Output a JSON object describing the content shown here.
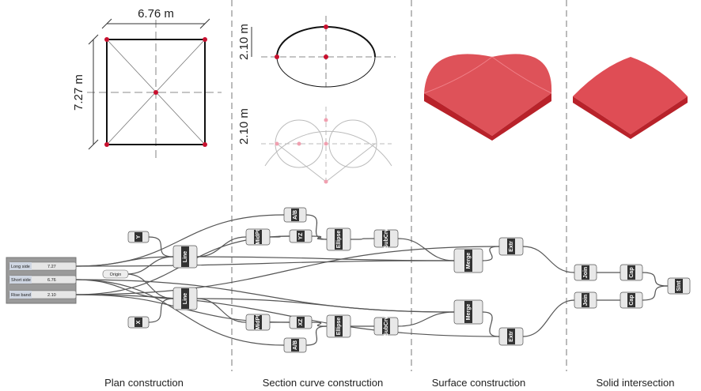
{
  "drawing_labels": {
    "plan_width": "6.76 m",
    "plan_depth": "7.27 m",
    "section_rise_top": "2.10 m",
    "section_rise_bottom": "2.10 m"
  },
  "sliders": [
    {
      "name": "Long side",
      "value": "7.27"
    },
    {
      "name": "Short side",
      "value": "6.76"
    },
    {
      "name": "Rise band",
      "value": "2.10"
    }
  ],
  "origin": "Origin",
  "components": [
    "Y",
    "X",
    "Line",
    "Line",
    "MidPt",
    "MidPt",
    "A/B",
    "A/B",
    "YZ",
    "XZ",
    "Ellipse",
    "Ellipse",
    "SubCrv",
    "SubCrv",
    "Merge",
    "Merge",
    "Extr",
    "Extr",
    "Join",
    "Join",
    "Cap",
    "Cap",
    "SInt"
  ],
  "section_titles": [
    "Plan construction",
    "Section curve construction",
    "Surface construction",
    "Solid intersection"
  ]
}
